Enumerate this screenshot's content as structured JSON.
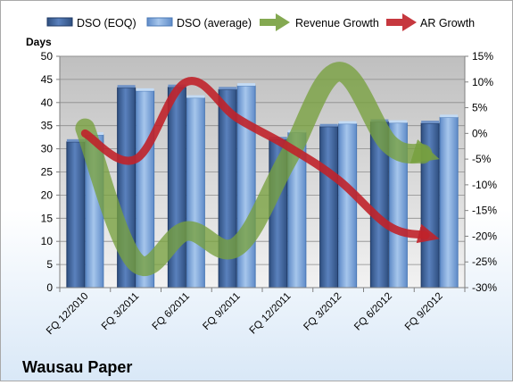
{
  "chart_data": {
    "type": "bar",
    "title": "Wausau Paper",
    "y_left_label": "Days",
    "categories": [
      "FQ 12/2010",
      "FQ 3/2011",
      "FQ 6/2011",
      "FQ 9/2011",
      "FQ 12/2011",
      "FQ 3/2012",
      "FQ 6/2012",
      "FQ 9/2012"
    ],
    "y_left_lim": [
      0,
      50
    ],
    "y_left_ticks": [
      "0",
      "5",
      "10",
      "15",
      "20",
      "25",
      "30",
      "35",
      "40",
      "45",
      "50"
    ],
    "y_right_lim": [
      -30,
      15
    ],
    "y_right_ticks": [
      "-30%",
      "-25%",
      "-20%",
      "-15%",
      "-10%",
      "-5%",
      "0%",
      "5%",
      "10%",
      "15%"
    ],
    "grid": true,
    "legend_position": "top",
    "bar_series": [
      {
        "name": "DSO (EOQ)",
        "axis": "left",
        "color": "#4a6fa5",
        "values": [
          31.5,
          43.2,
          43.3,
          42.8,
          32.0,
          34.8,
          35.8,
          35.5
        ]
      },
      {
        "name": "DSO (average)",
        "axis": "left",
        "color": "#8db3e2",
        "values": [
          33.0,
          42.5,
          41.0,
          43.6,
          33.5,
          35.4,
          35.6,
          36.8
        ]
      }
    ],
    "line_series": [
      {
        "name": "Revenue Growth",
        "axis": "right",
        "color": "#77a03e",
        "values": [
          1.0,
          -25.0,
          -19.0,
          -22.0,
          -5.0,
          12.0,
          -2.0,
          -5.0
        ]
      },
      {
        "name": "AR Growth",
        "axis": "right",
        "color": "#c0222a",
        "values": [
          0.0,
          -5.0,
          10.0,
          3.0,
          -2.5,
          -9.0,
          -18.0,
          -20.5
        ]
      }
    ]
  }
}
